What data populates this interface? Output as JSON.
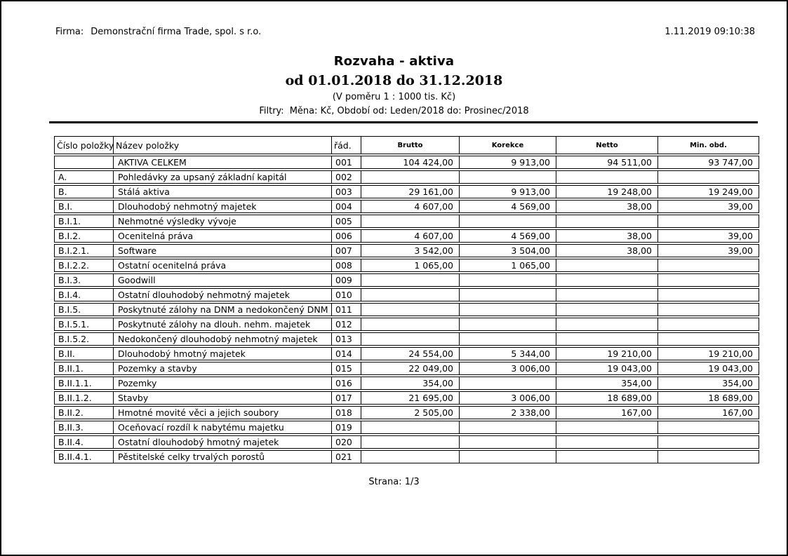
{
  "report": {
    "firm_label": "Firma:",
    "firm_name": "Demonstrační firma Trade, spol. s r.o.",
    "generated_at": "1.11.2019 09:10:38",
    "title": "Rozvaha - aktiva",
    "period": "od 01.01.2018 do 31.12.2018",
    "ratio_note": "(V poměru 1 : 1000 tis. Kč)",
    "filters_label": "Filtry:",
    "filters_value": "Měna: Kč, Období od: Leden/2018 do: Prosinec/2018",
    "page_label": "Strana: 1/3"
  },
  "table": {
    "headers": [
      "Číslo položky",
      "Název položky",
      "řád.",
      "Brutto",
      "Korekce",
      "Netto",
      "Min. obd."
    ],
    "rows": [
      [
        "",
        "AKTIVA CELKEM",
        "001",
        "104 424,00",
        "9 913,00",
        "94 511,00",
        "93 747,00"
      ],
      [
        "A.",
        "Pohledávky za upsaný základní kapitál",
        "002",
        "",
        "",
        "",
        ""
      ],
      [
        "B.",
        "Stálá aktiva",
        "003",
        "29 161,00",
        "9 913,00",
        "19 248,00",
        "19 249,00"
      ],
      [
        "B.I.",
        "Dlouhodobý nehmotný majetek",
        "004",
        "4 607,00",
        "4 569,00",
        "38,00",
        "39,00"
      ],
      [
        "B.I.1.",
        "Nehmotné výsledky vývoje",
        "005",
        "",
        "",
        "",
        ""
      ],
      [
        "B.I.2.",
        "Ocenitelná práva",
        "006",
        "4 607,00",
        "4 569,00",
        "38,00",
        "39,00"
      ],
      [
        "B.I.2.1.",
        "Software",
        "007",
        "3 542,00",
        "3 504,00",
        "38,00",
        "39,00"
      ],
      [
        "B.I.2.2.",
        "Ostatní ocenitelná práva",
        "008",
        "1 065,00",
        "1 065,00",
        "",
        ""
      ],
      [
        "B.I.3.",
        "Goodwill",
        "009",
        "",
        "",
        "",
        ""
      ],
      [
        "B.I.4.",
        "Ostatní dlouhodobý nehmotný majetek",
        "010",
        "",
        "",
        "",
        ""
      ],
      [
        "B.I.5.",
        "Poskytnuté zálohy na DNM a nedokončený DNM",
        "011",
        "",
        "",
        "",
        ""
      ],
      [
        "B.I.5.1.",
        "Poskytnuté zálohy na dlouh. nehm. majetek",
        "012",
        "",
        "",
        "",
        ""
      ],
      [
        "B.I.5.2.",
        "Nedokončený dlouhodobý nehmotný majetek",
        "013",
        "",
        "",
        "",
        ""
      ],
      [
        "B.II.",
        "Dlouhodobý hmotný majetek",
        "014",
        "24 554,00",
        "5 344,00",
        "19 210,00",
        "19 210,00"
      ],
      [
        "B.II.1.",
        "Pozemky a stavby",
        "015",
        "22 049,00",
        "3 006,00",
        "19 043,00",
        "19 043,00"
      ],
      [
        "B.II.1.1.",
        "Pozemky",
        "016",
        "354,00",
        "",
        "354,00",
        "354,00"
      ],
      [
        "B.II.1.2.",
        "Stavby",
        "017",
        "21 695,00",
        "3 006,00",
        "18 689,00",
        "18 689,00"
      ],
      [
        "B.II.2.",
        "Hmotné movité věci a jejich soubory",
        "018",
        "2 505,00",
        "2 338,00",
        "167,00",
        "167,00"
      ],
      [
        "B.II.3.",
        "Oceňovací rozdíl k nabytému majetku",
        "019",
        "",
        "",
        "",
        ""
      ],
      [
        "B.II.4.",
        "Ostatní dlouhodobý hmotný majetek",
        "020",
        "",
        "",
        "",
        ""
      ],
      [
        "B.II.4.1.",
        "Pěstitelské celky trvalých porostů",
        "021",
        "",
        "",
        "",
        ""
      ]
    ]
  },
  "colors": {
    "text": "#000000",
    "border": "#000000",
    "background": "#ffffff"
  }
}
